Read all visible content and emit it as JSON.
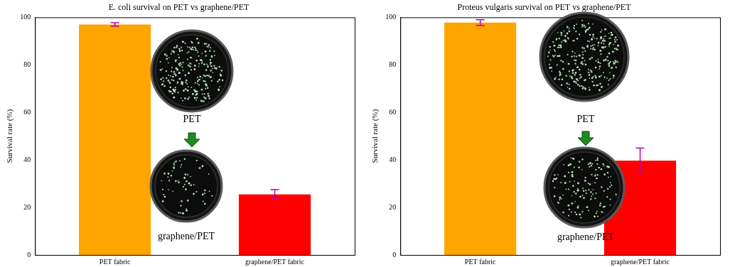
{
  "chart_data": [
    {
      "type": "bar",
      "title": "E. coli survival on PET vs graphene/PET",
      "y_label": "Survival rate (%)",
      "categories": [
        "PET fabric",
        "graphene/PET fabric"
      ],
      "values": [
        97.0,
        25.5
      ],
      "errors": [
        0.7,
        2.0
      ],
      "colors": [
        "#ffa500",
        "#ff0000"
      ],
      "ylim": [
        0,
        100
      ],
      "yticks": [
        0,
        20,
        40,
        60,
        80,
        100
      ],
      "grid": false,
      "annotations": [
        "PET",
        "graphene/PET"
      ]
    },
    {
      "type": "bar",
      "title": "Proteus vulgaris survival on PET vs graphene/PET",
      "y_label": "Survival rate (%)",
      "categories": [
        "PET fabric",
        "graphene/PET fabric"
      ],
      "values": [
        97.8,
        39.7
      ],
      "errors": [
        1.2,
        5.3
      ],
      "colors": [
        "#ffa500",
        "#ff0000"
      ],
      "ylim": [
        0,
        100
      ],
      "yticks": [
        0,
        20,
        40,
        60,
        80,
        100
      ],
      "grid": false,
      "annotations": [
        "PET",
        "graphene/PET"
      ]
    }
  ]
}
